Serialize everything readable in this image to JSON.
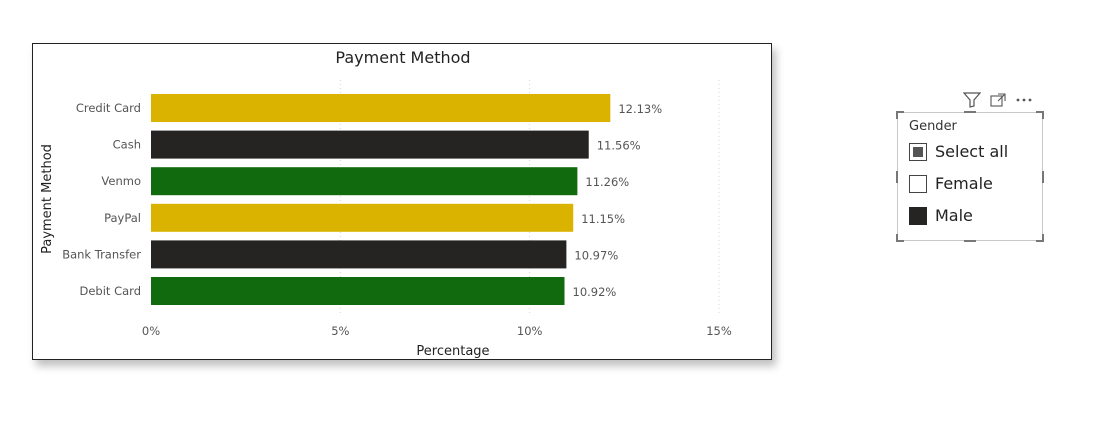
{
  "chart_data": {
    "type": "bar",
    "orientation": "horizontal",
    "title": "Payment Method",
    "xlabel": "Percentage",
    "ylabel": "Payment Method",
    "categories": [
      "Credit Card",
      "Cash",
      "Venmo",
      "PayPal",
      "Bank Transfer",
      "Debit Card"
    ],
    "values": [
      12.13,
      11.56,
      11.26,
      11.15,
      10.97,
      10.92
    ],
    "data_labels": [
      "12.13%",
      "11.56%",
      "11.26%",
      "11.15%",
      "10.97%",
      "10.92%"
    ],
    "bar_colors": [
      "#D9B300",
      "#252423",
      "#126A0E",
      "#D9B300",
      "#252423",
      "#126A0E"
    ],
    "xlim": [
      0,
      15
    ],
    "x_ticks": [
      0,
      5,
      10,
      15
    ],
    "x_tick_labels": [
      "0%",
      "5%",
      "10%",
      "15%"
    ],
    "grid": true,
    "legend": "none"
  },
  "slicer": {
    "header": "Gender",
    "items": [
      {
        "label": "Select all",
        "state": "partial"
      },
      {
        "label": "Female",
        "state": "unchecked"
      },
      {
        "label": "Male",
        "state": "checked"
      }
    ]
  },
  "toolbar": {
    "icons": [
      "filter-icon",
      "focus-mode-icon",
      "more-options-icon"
    ]
  }
}
